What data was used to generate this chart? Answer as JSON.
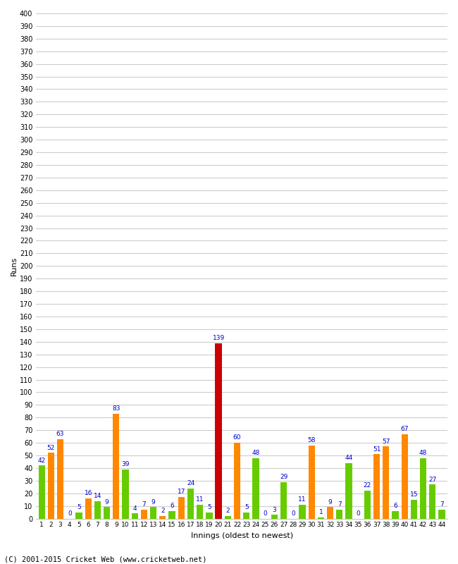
{
  "innings": [
    1,
    2,
    3,
    4,
    5,
    6,
    7,
    8,
    9,
    10,
    11,
    12,
    13,
    14,
    15,
    16,
    17,
    18,
    19,
    20,
    21,
    22,
    23,
    24,
    25,
    26,
    27,
    28,
    29,
    30,
    31,
    32,
    33,
    34,
    35,
    36,
    37,
    38,
    39,
    40,
    41,
    42,
    43,
    44
  ],
  "values": [
    42,
    52,
    63,
    0,
    5,
    16,
    14,
    9,
    83,
    39,
    4,
    7,
    9,
    2,
    6,
    17,
    24,
    11,
    5,
    139,
    2,
    60,
    5,
    48,
    0,
    3,
    29,
    0,
    11,
    58,
    1,
    9,
    7,
    44,
    0,
    22,
    51,
    57,
    6,
    67,
    15,
    48,
    27,
    7
  ],
  "colors": [
    "#66cc00",
    "#ff8800",
    "#ff8800",
    "#66cc00",
    "#66cc00",
    "#ff8800",
    "#66cc00",
    "#66cc00",
    "#ff8800",
    "#66cc00",
    "#66cc00",
    "#ff8800",
    "#66cc00",
    "#ff8800",
    "#66cc00",
    "#ff8800",
    "#66cc00",
    "#66cc00",
    "#66cc00",
    "#cc0000",
    "#66cc00",
    "#ff8800",
    "#66cc00",
    "#66cc00",
    "#66cc00",
    "#66cc00",
    "#66cc00",
    "#66cc00",
    "#66cc00",
    "#ff8800",
    "#66cc00",
    "#ff8800",
    "#66cc00",
    "#66cc00",
    "#66cc00",
    "#66cc00",
    "#ff8800",
    "#ff8800",
    "#66cc00",
    "#ff8800",
    "#66cc00",
    "#66cc00",
    "#66cc00",
    "#66cc00"
  ],
  "ylabel": "Runs",
  "xlabel": "Innings (oldest to newest)",
  "ylim": [
    0,
    400
  ],
  "yticks": [
    0,
    10,
    20,
    30,
    40,
    50,
    60,
    70,
    80,
    90,
    100,
    110,
    120,
    130,
    140,
    150,
    160,
    170,
    180,
    190,
    200,
    210,
    220,
    230,
    240,
    250,
    260,
    270,
    280,
    290,
    300,
    310,
    320,
    330,
    340,
    350,
    360,
    370,
    380,
    390,
    400
  ],
  "bg_color": "#ffffff",
  "grid_color": "#cccccc",
  "bar_label_color": "#0000cc",
  "bar_label_fontsize": 6.5,
  "footer": "(C) 2001-2015 Cricket Web (www.cricketweb.net)"
}
